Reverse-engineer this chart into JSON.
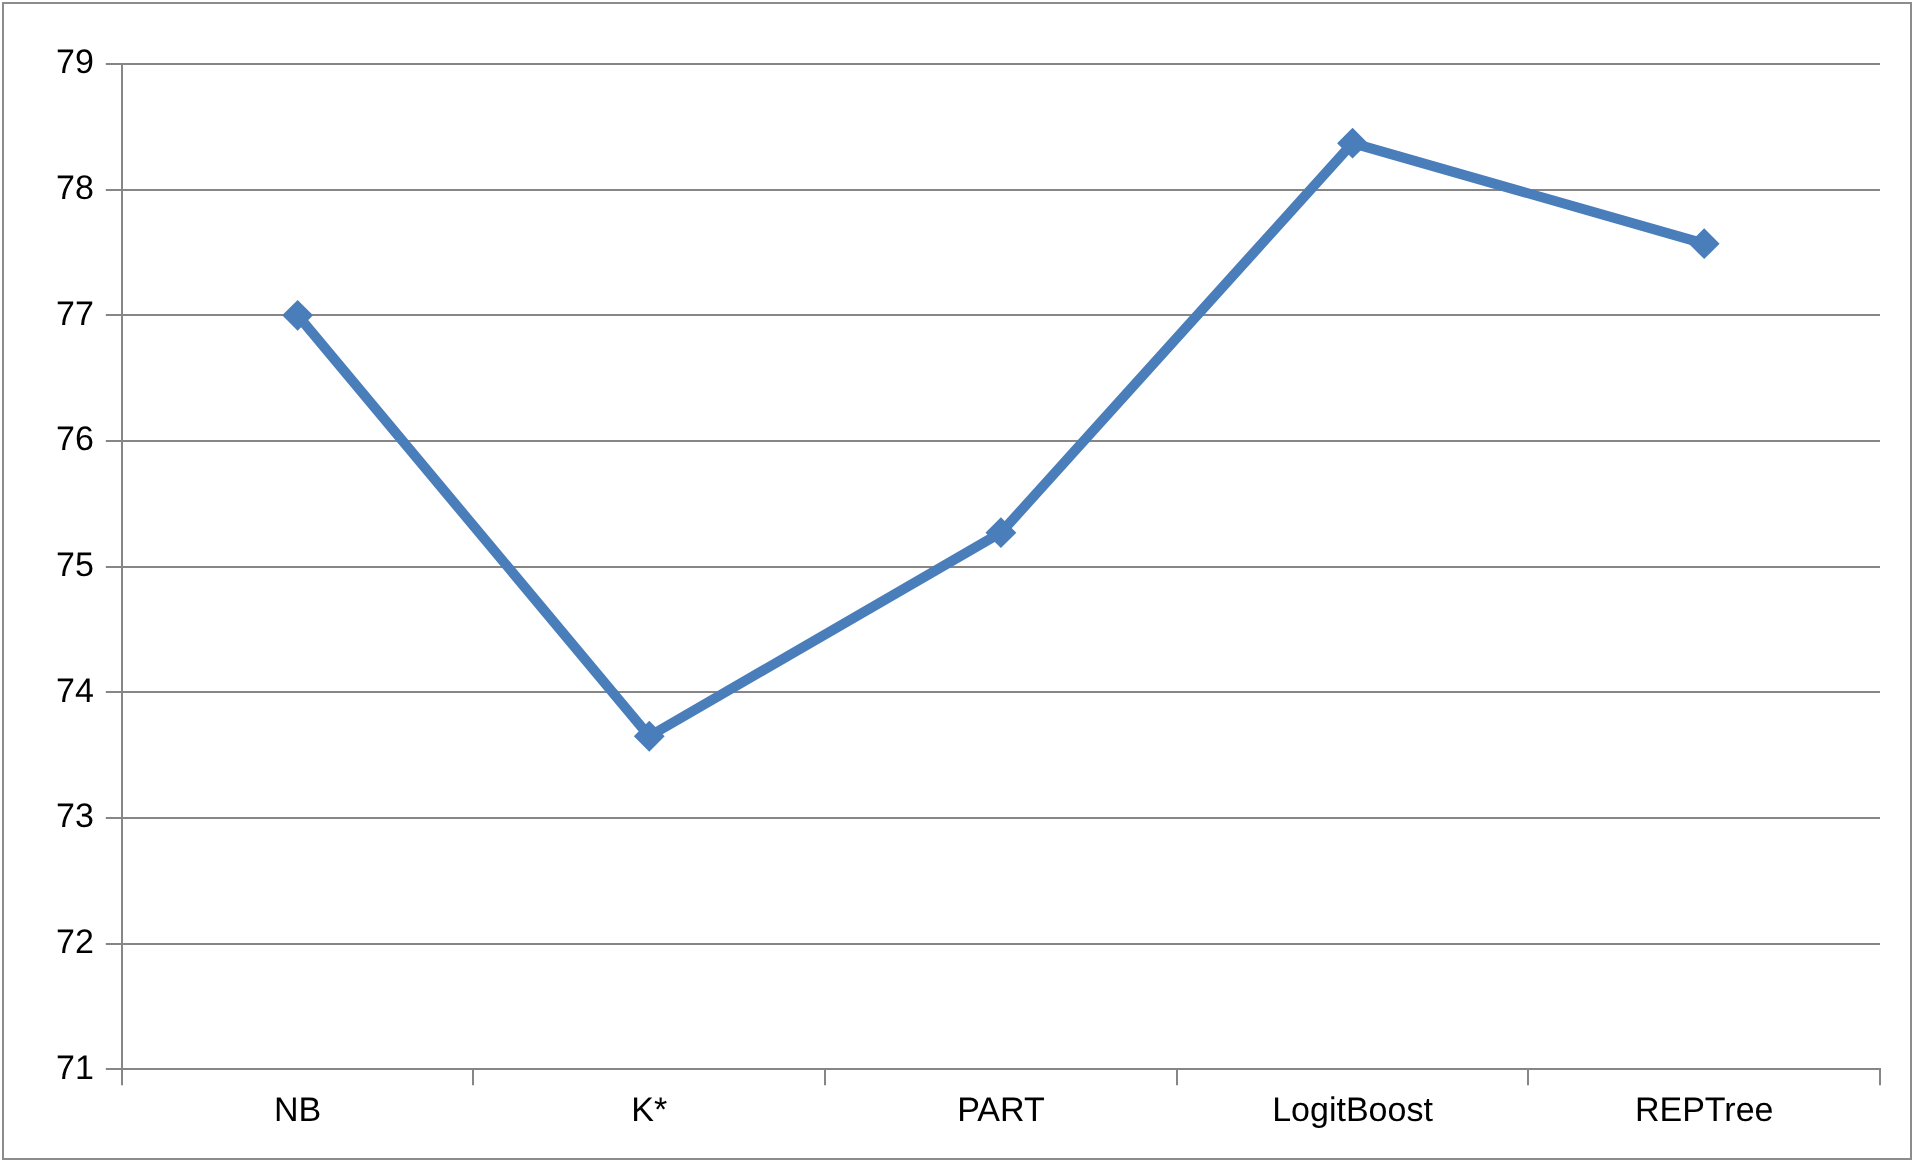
{
  "chart_data": {
    "type": "line",
    "categories": [
      "NB",
      "K*",
      "PART",
      "LogitBoost",
      "REPTree"
    ],
    "series": [
      {
        "color": "#4a7ebb",
        "values": [
          77.0,
          73.65,
          75.27,
          78.37,
          77.57
        ]
      }
    ],
    "ylim": [
      71,
      79
    ],
    "yticks": [
      71,
      72,
      73,
      74,
      75,
      76,
      77,
      78,
      79
    ],
    "grid": "y",
    "legend": false,
    "marker": "diamond",
    "line_style": "solid"
  }
}
